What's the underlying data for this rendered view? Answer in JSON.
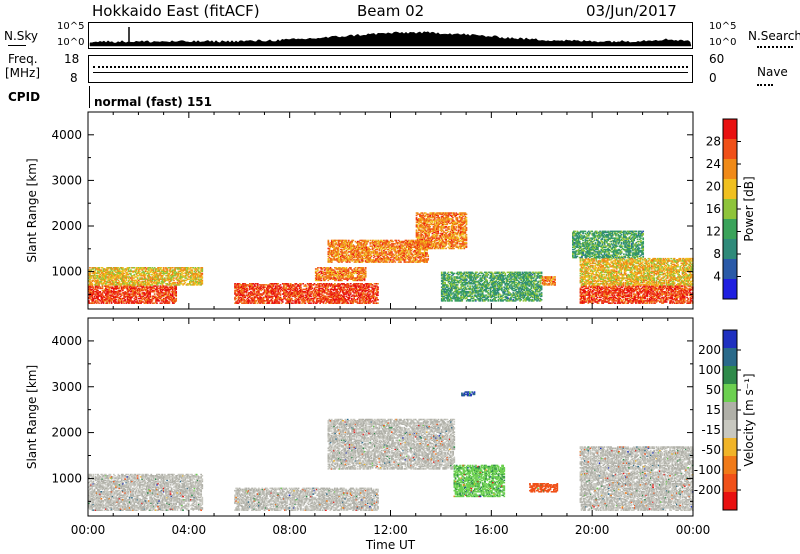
{
  "header": {
    "site": "Hokkaido East (fitACF)",
    "beam": "Beam 02",
    "date": "03/Jun/2017"
  },
  "top_panels": {
    "nsky_label": "N.Sky",
    "nsearch_label": "N.Search",
    "nsky_ticks": [
      "10^5",
      "10^0"
    ],
    "nsearch_ticks": [
      "10^5",
      "10^0"
    ],
    "freq_label_1": "Freq.",
    "freq_label_2": "[MHz]",
    "freq_ticks": [
      "18",
      "8"
    ],
    "nave_label": "Nave",
    "nave_ticks": [
      "60",
      "0"
    ],
    "cpid_label": "CPID",
    "cpid_text": "normal (fast) 151"
  },
  "colors": {
    "power_scale": [
      "#1f1fe0",
      "#2a5aa8",
      "#2f8a7a",
      "#3aa35a",
      "#8ec43a",
      "#f0c020",
      "#f08a18",
      "#f05018",
      "#e81010"
    ],
    "velocity_scale": [
      "#e81010",
      "#f05018",
      "#f07a18",
      "#f0b428",
      "#c8c8c0",
      "#b0b0a8",
      "#6cd050",
      "#2f8a4a",
      "#2a6a8a",
      "#1f30c0"
    ]
  },
  "chart_data": [
    {
      "type": "heatmap",
      "name": "power",
      "ylabel": "Slant Range [km]",
      "xlabel": "",
      "xlim": [
        "00:00",
        "24:00"
      ],
      "ylim": [
        180,
        4500
      ],
      "yticks": [
        "1000",
        "2000",
        "3000",
        "4000"
      ],
      "colorbar_label": "Power [dB]",
      "colorbar_ticks": [
        "4",
        "8",
        "12",
        "16",
        "20",
        "24",
        "28"
      ],
      "grid": false,
      "approx_regions": [
        {
          "t_start": 0.0,
          "t_end": 3.5,
          "r_start": 300,
          "r_end": 700,
          "value": 28
        },
        {
          "t_start": 0.0,
          "t_end": 4.5,
          "r_start": 700,
          "r_end": 1100,
          "value": 20
        },
        {
          "t_start": 5.8,
          "t_end": 11.5,
          "r_start": 300,
          "r_end": 750,
          "value": 28
        },
        {
          "t_start": 9.0,
          "t_end": 11.0,
          "r_start": 800,
          "r_end": 1100,
          "value": 24
        },
        {
          "t_start": 9.5,
          "t_end": 13.5,
          "r_start": 1200,
          "r_end": 1700,
          "value": 24
        },
        {
          "t_start": 13.0,
          "t_end": 15.0,
          "r_start": 1500,
          "r_end": 2300,
          "value": 24
        },
        {
          "t_start": 14.0,
          "t_end": 18.0,
          "r_start": 350,
          "r_end": 1000,
          "value": 12
        },
        {
          "t_start": 18.0,
          "t_end": 18.5,
          "r_start": 700,
          "r_end": 900,
          "value": 24
        },
        {
          "t_start": 19.5,
          "t_end": 24.0,
          "r_start": 300,
          "r_end": 700,
          "value": 28
        },
        {
          "t_start": 19.5,
          "t_end": 24.0,
          "r_start": 700,
          "r_end": 1300,
          "value": 20
        },
        {
          "t_start": 19.2,
          "t_end": 22.0,
          "r_start": 1300,
          "r_end": 1900,
          "value": 12
        }
      ]
    },
    {
      "type": "heatmap",
      "name": "velocity",
      "ylabel": "Slant Range [km]",
      "xlabel": "Time UT",
      "xlim": [
        "00:00",
        "24:00"
      ],
      "ylim": [
        180,
        4500
      ],
      "yticks": [
        "1000",
        "2000",
        "3000",
        "4000"
      ],
      "xticks": [
        "00:00",
        "04:00",
        "08:00",
        "12:00",
        "16:00",
        "20:00",
        "00:00"
      ],
      "colorbar_label": "Velocity [m s⁻¹]",
      "colorbar_ticks": [
        "200",
        "100",
        "50",
        "15",
        "-15",
        "-50",
        "-100",
        "-200"
      ],
      "grid": false,
      "approx_regions": [
        {
          "t_start": 0.0,
          "t_end": 4.5,
          "r_start": 300,
          "r_end": 1100,
          "value": 0
        },
        {
          "t_start": 5.8,
          "t_end": 11.5,
          "r_start": 300,
          "r_end": 800,
          "value": 0
        },
        {
          "t_start": 9.5,
          "t_end": 14.5,
          "r_start": 1200,
          "r_end": 2300,
          "value": 0
        },
        {
          "t_start": 14.5,
          "t_end": 16.5,
          "r_start": 600,
          "r_end": 1300,
          "value": 40
        },
        {
          "t_start": 14.8,
          "t_end": 15.3,
          "r_start": 2800,
          "r_end": 2900,
          "value": 200
        },
        {
          "t_start": 17.5,
          "t_end": 18.6,
          "r_start": 700,
          "r_end": 900,
          "value": -150
        },
        {
          "t_start": 19.5,
          "t_end": 24.0,
          "r_start": 300,
          "r_end": 1700,
          "value": 0
        }
      ]
    }
  ]
}
